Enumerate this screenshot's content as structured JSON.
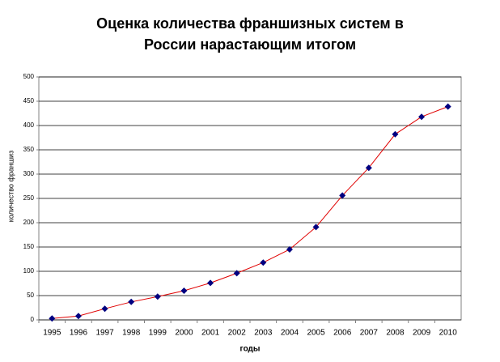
{
  "chart_data": {
    "type": "line",
    "title": [
      "Оценка количества франшизных систем в",
      "России нарастающим итогом"
    ],
    "x_label": "годы",
    "y_label": "количество франшиз",
    "categories": [
      "1995",
      "1996",
      "1997",
      "1998",
      "1999",
      "2000",
      "2001",
      "2002",
      "2003",
      "2004",
      "2005",
      "2006",
      "2007",
      "2008",
      "2009",
      "2010"
    ],
    "series": [
      {
        "name": "количество франшиз",
        "line_color": "#e00000",
        "marker_color": "#000080",
        "values": [
          3,
          8,
          23,
          37,
          48,
          60,
          76,
          96,
          118,
          145,
          191,
          256,
          313,
          382,
          418,
          439
        ]
      }
    ],
    "ylim": [
      0,
      500
    ],
    "yticks": [
      0,
      50,
      100,
      150,
      200,
      250,
      300,
      350,
      400,
      450,
      500
    ],
    "grid": true
  }
}
